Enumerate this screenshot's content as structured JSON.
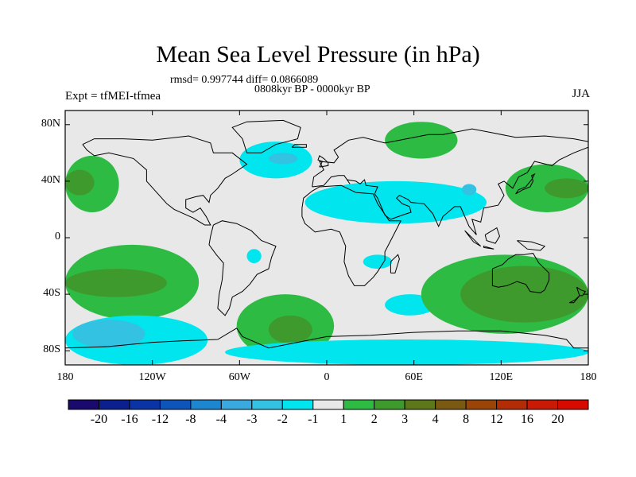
{
  "header": {
    "title": "Mean Sea Level Pressure (in hPa)",
    "stats": "rmsd= 0.997744 diff= 0.0866089",
    "period": "0808kyr BP - 0000kyr BP",
    "experiment": "Expt = tfMEI-tfmea",
    "season": "JJA"
  },
  "chart_data": {
    "type": "heatmap",
    "title": "Mean Sea Level Pressure (in hPa)",
    "x_ticks": [
      "180",
      "120W",
      "60W",
      "0",
      "60E",
      "120E",
      "180"
    ],
    "y_ticks": [
      "80N",
      "40N",
      "0",
      "40S",
      "80S"
    ],
    "xlim": [
      -180,
      180
    ],
    "ylim": [
      -90,
      90
    ],
    "colorbar": {
      "labels": [
        "-20",
        "-16",
        "-12",
        "-8",
        "-4",
        "-3",
        "-2",
        "-1",
        "1",
        "2",
        "3",
        "4",
        "8",
        "12",
        "16",
        "20"
      ],
      "colors": [
        "#1a0a6e",
        "#0c1f8f",
        "#0a34a6",
        "#0d55b8",
        "#1c86d0",
        "#3aa9e0",
        "#34c2e2",
        "#00e5ee",
        "#e8e8e8",
        "#2dbb44",
        "#3e9a2c",
        "#5c7818",
        "#7a5a12",
        "#9a4408",
        "#b22c06",
        "#c81a04",
        "#d80a00"
      ]
    },
    "regions": [
      {
        "sign": "positive",
        "level": 2,
        "lon": [
          -180,
          -143
        ],
        "lat": [
          18,
          58
        ]
      },
      {
        "sign": "positive",
        "level": 3,
        "lon": [
          -180,
          -160
        ],
        "lat": [
          30,
          48
        ]
      },
      {
        "sign": "negative",
        "level": -1,
        "lon": [
          -60,
          -10
        ],
        "lat": [
          42,
          68
        ]
      },
      {
        "sign": "negative",
        "level": -2,
        "lon": [
          -40,
          -20
        ],
        "lat": [
          52,
          60
        ]
      },
      {
        "sign": "positive",
        "level": 2,
        "lon": [
          40,
          90
        ],
        "lat": [
          56,
          82
        ]
      },
      {
        "sign": "negative",
        "level": -1,
        "lon": [
          -15,
          110
        ],
        "lat": [
          10,
          40
        ]
      },
      {
        "sign": "negative",
        "level": -2,
        "lon": [
          93,
          103
        ],
        "lat": [
          30,
          38
        ]
      },
      {
        "sign": "positive",
        "level": 2,
        "lon": [
          123,
          180
        ],
        "lat": [
          18,
          52
        ]
      },
      {
        "sign": "positive",
        "level": 3,
        "lon": [
          150,
          180
        ],
        "lat": [
          28,
          42
        ]
      },
      {
        "sign": "negative",
        "level": -1,
        "lon": [
          -55,
          -45
        ],
        "lat": [
          -18,
          -8
        ]
      },
      {
        "sign": "negative",
        "level": -1,
        "lon": [
          25,
          45
        ],
        "lat": [
          -22,
          -12
        ]
      },
      {
        "sign": "positive",
        "level": 2,
        "lon": [
          -180,
          -88
        ],
        "lat": [
          -58,
          -5
        ]
      },
      {
        "sign": "positive",
        "level": 3,
        "lon": [
          -180,
          -110
        ],
        "lat": [
          -42,
          -22
        ]
      },
      {
        "sign": "negative",
        "level": -1,
        "lon": [
          -180,
          -82
        ],
        "lat": [
          -90,
          -55
        ]
      },
      {
        "sign": "negative",
        "level": -2,
        "lon": [
          -175,
          -125
        ],
        "lat": [
          -78,
          -58
        ]
      },
      {
        "sign": "positive",
        "level": 2,
        "lon": [
          -62,
          5
        ],
        "lat": [
          -85,
          -40
        ]
      },
      {
        "sign": "positive",
        "level": 3,
        "lon": [
          -40,
          -10
        ],
        "lat": [
          -75,
          -55
        ]
      },
      {
        "sign": "negative",
        "level": -1,
        "lon": [
          -70,
          180
        ],
        "lat": [
          -90,
          -72
        ]
      },
      {
        "sign": "negative",
        "level": -1,
        "lon": [
          40,
          75
        ],
        "lat": [
          -55,
          -40
        ]
      },
      {
        "sign": "positive",
        "level": 2,
        "lon": [
          65,
          180
        ],
        "lat": [
          -68,
          -12
        ]
      },
      {
        "sign": "positive",
        "level": 3,
        "lon": [
          92,
          180
        ],
        "lat": [
          -60,
          -20
        ]
      }
    ]
  }
}
